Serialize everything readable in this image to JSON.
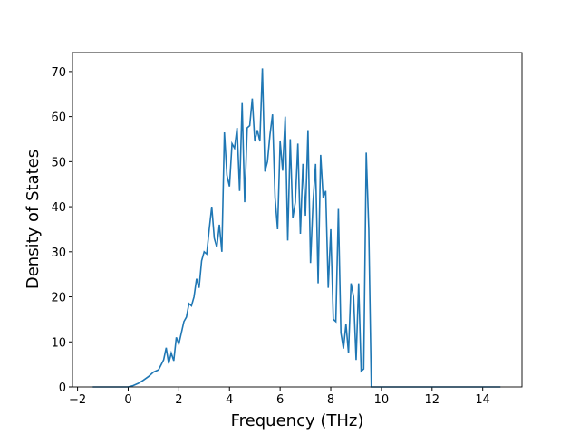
{
  "chart_data": {
    "type": "line",
    "xlabel": "Frequency (THz)",
    "ylabel": "Density of States",
    "x": [
      -1.4,
      0,
      0.2,
      0.4,
      0.6,
      0.8,
      1.0,
      1.2,
      1.4,
      1.5,
      1.6,
      1.7,
      1.8,
      1.9,
      2.0,
      2.1,
      2.2,
      2.3,
      2.4,
      2.5,
      2.6,
      2.7,
      2.8,
      2.9,
      3.0,
      3.1,
      3.2,
      3.3,
      3.4,
      3.5,
      3.6,
      3.7,
      3.8,
      3.9,
      4.0,
      4.1,
      4.2,
      4.3,
      4.4,
      4.5,
      4.6,
      4.7,
      4.8,
      4.9,
      5.0,
      5.1,
      5.2,
      5.3,
      5.4,
      5.5,
      5.6,
      5.7,
      5.8,
      5.9,
      6.0,
      6.1,
      6.2,
      6.3,
      6.4,
      6.5,
      6.6,
      6.7,
      6.8,
      6.9,
      7.0,
      7.1,
      7.2,
      7.3,
      7.4,
      7.5,
      7.6,
      7.7,
      7.8,
      7.9,
      8.0,
      8.1,
      8.2,
      8.3,
      8.4,
      8.5,
      8.6,
      8.7,
      8.8,
      8.9,
      9.0,
      9.1,
      9.2,
      9.3,
      9.4,
      9.5,
      9.6,
      9.7,
      14.7
    ],
    "series": [
      {
        "color": "#1f77b4",
        "values": [
          0,
          0,
          0.3,
          0.8,
          1.5,
          2.3,
          3.3,
          3.8,
          6,
          8.7,
          5.2,
          7.5,
          5.8,
          11,
          9.5,
          12,
          14.5,
          15.5,
          18.5,
          18,
          20,
          24,
          22,
          28,
          30,
          29.5,
          35,
          40,
          33,
          31,
          36,
          30,
          56.5,
          47,
          44.5,
          54,
          53,
          57.5,
          43.5,
          63,
          41,
          57.5,
          58,
          64,
          54.5,
          57,
          54.5,
          70.7,
          47.8,
          50,
          56,
          60.5,
          42,
          35,
          54.5,
          48,
          60,
          32.5,
          55,
          37.5,
          41,
          54,
          34,
          49.5,
          38,
          57,
          27.5,
          41,
          49.5,
          23,
          51.5,
          42,
          43.5,
          22,
          35,
          15,
          14.5,
          39.5,
          12,
          8.5,
          14,
          7.5,
          23,
          20,
          6,
          23,
          3.5,
          4,
          52,
          35,
          0,
          0,
          0
        ]
      }
    ],
    "xlim": [
      -2.2,
      15.55
    ],
    "ylim": [
      0,
      74.2
    ],
    "xticks": [
      {
        "value": -2,
        "label": "−2"
      },
      0,
      2,
      4,
      6,
      8,
      10,
      12,
      14
    ],
    "yticks": [
      0,
      10,
      20,
      30,
      40,
      50,
      60,
      70
    ]
  }
}
